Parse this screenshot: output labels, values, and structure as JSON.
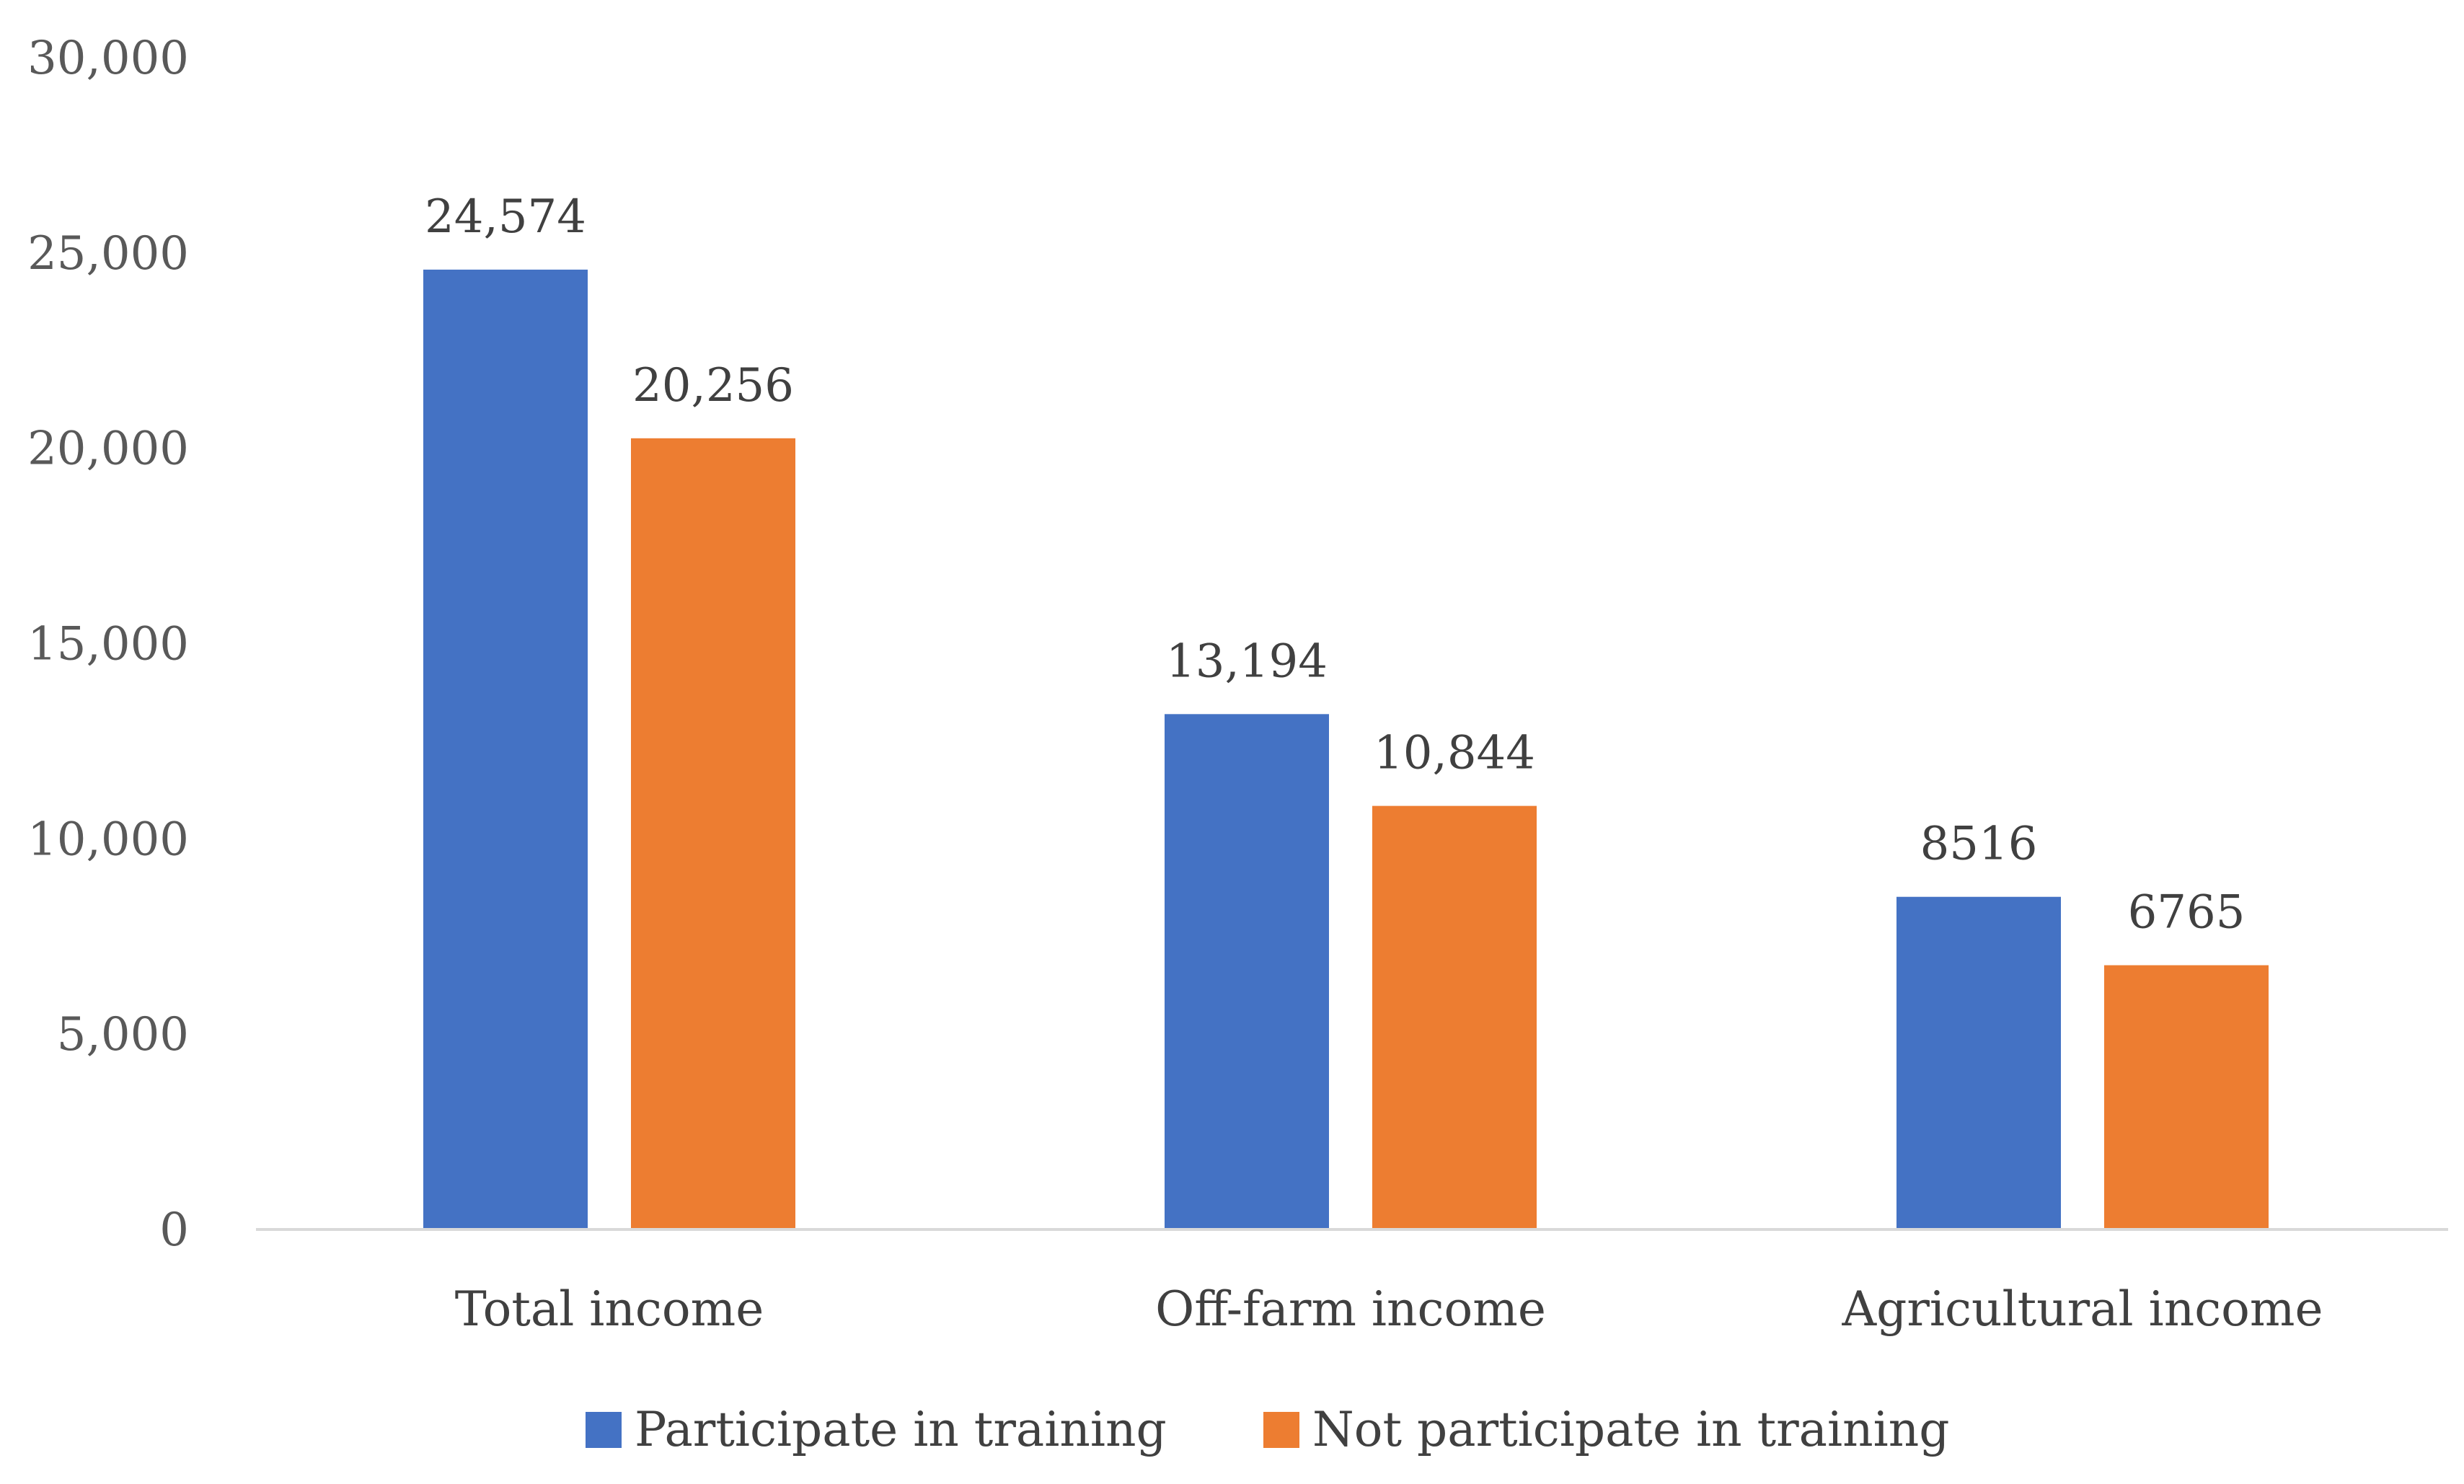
{
  "chart_data": {
    "type": "bar",
    "categories": [
      "Total income",
      "Off-farm income",
      "Agricultural income"
    ],
    "series": [
      {
        "name": "Participate in training",
        "values": [
          24574,
          13194,
          8516
        ],
        "labels": [
          "24,574",
          "13,194",
          "8516"
        ],
        "color": "#4472C4"
      },
      {
        "name": "Not participate in training",
        "values": [
          20256,
          10844,
          6765
        ],
        "labels": [
          "20,256",
          "10,844",
          "6765"
        ],
        "color": "#ED7D31"
      }
    ],
    "ylim": [
      0,
      30000
    ],
    "yticks": [
      "0",
      "5,000",
      "10,000",
      "15,000",
      "20,000",
      "25,000",
      "30,000"
    ],
    "ytick_values": [
      0,
      5000,
      10000,
      15000,
      20000,
      25000,
      30000
    ],
    "grid": false,
    "legend_position": "bottom",
    "axis_color": "#D9D9D9"
  }
}
